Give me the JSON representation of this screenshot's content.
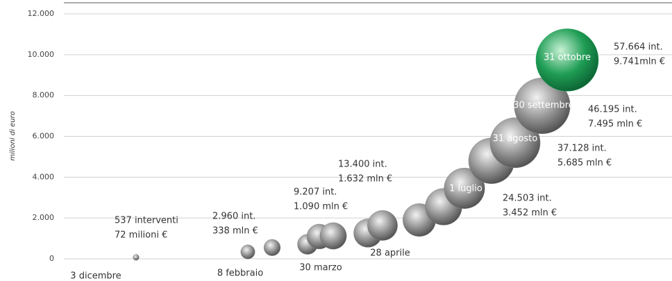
{
  "chart_data": {
    "type": "bubble",
    "y_label": "milioni di euro",
    "categories": [
      "3 dicembre",
      "8 febbraio",
      null,
      null,
      "30 marzo",
      null,
      null,
      "28 aprile",
      null,
      null,
      "1 luglio",
      null,
      "31 agosto",
      "30 settembre",
      "31 ottobre"
    ],
    "values": [
      72,
      338,
      550,
      710,
      1090,
      1120,
      1260,
      1632,
      1900,
      2550,
      3452,
      4800,
      5685,
      7495,
      9741
    ],
    "sizes": [
      537,
      2960,
      4000,
      6000,
      9207,
      10500,
      12000,
      13400,
      16000,
      20000,
      24503,
      31000,
      37128,
      46195,
      57664
    ],
    "colors": [
      "#8a8a8a",
      "#8a8a8a",
      "#8a8a8a",
      "#8a8a8a",
      "#8a8a8a",
      "#8a8a8a",
      "#8a8a8a",
      "#8a8a8a",
      "#8a8a8a",
      "#8a8a8a",
      "#8a8a8a",
      "#8a8a8a",
      "#8a8a8a",
      "#8a8a8a",
      "#1f9d55"
    ],
    "ylim": [
      0,
      12000
    ],
    "yticks": [
      0,
      {
        "value": 2000,
        "label": "2.000"
      },
      {
        "value": 4000,
        "label": "4.000"
      },
      {
        "value": 6000,
        "label": "6.000"
      },
      {
        "value": 8000,
        "label": "8.000"
      },
      {
        "value": 10000,
        "label": "10.000"
      },
      {
        "value": 12000,
        "label": "12.000"
      }
    ],
    "grid": true,
    "annotations": [
      [
        "537 interventi",
        "72 milioni €"
      ],
      [
        "2.960 int.",
        "338 mln €"
      ],
      [
        "9.207 int.",
        "1.090 mln €"
      ],
      [
        "13.400 int.",
        "1.632 mln €"
      ],
      [
        "24.503 int.",
        "3.452 mln €"
      ],
      [
        "37.128 int.",
        "5.685 mln €"
      ],
      [
        "46.195 int.",
        "7.495 mln €"
      ],
      [
        "57.664 int.",
        "9.741mln €"
      ]
    ]
  }
}
